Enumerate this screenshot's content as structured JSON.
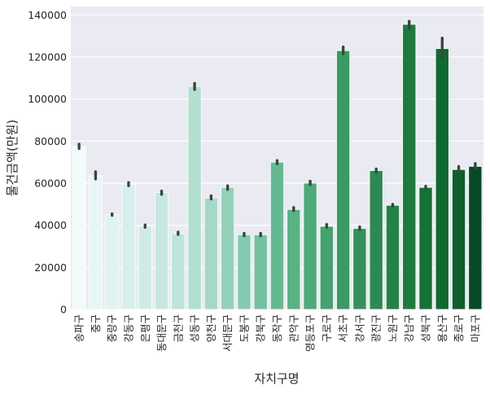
{
  "chart_data": {
    "type": "bar",
    "xlabel": "자치구명",
    "ylabel": "물건금액(만원)",
    "ylim": [
      0,
      144000
    ],
    "yticks": [
      0,
      20000,
      40000,
      60000,
      80000,
      100000,
      120000,
      140000
    ],
    "grid": true,
    "categories": [
      "송파구",
      "중구",
      "중랑구",
      "강동구",
      "은평구",
      "동대문구",
      "금천구",
      "성동구",
      "양천구",
      "서대문구",
      "도봉구",
      "강북구",
      "동작구",
      "관악구",
      "영등포구",
      "구로구",
      "서초구",
      "강서구",
      "광진구",
      "노원구",
      "강남구",
      "성북구",
      "용산구",
      "종로구",
      "마포구"
    ],
    "values": [
      77500,
      63500,
      45000,
      59500,
      39500,
      55500,
      36000,
      106000,
      53000,
      58000,
      35500,
      35500,
      70000,
      47500,
      60000,
      39500,
      123000,
      38500,
      66000,
      49500,
      135500,
      58000,
      124000,
      66500,
      68000
    ],
    "error_low": [
      76500,
      62000,
      44700,
      58800,
      39000,
      54700,
      35600,
      104500,
      52500,
      57000,
      35000,
      35000,
      69200,
      47000,
      59300,
      39000,
      121500,
      38000,
      65200,
      49000,
      133500,
      57500,
      119500,
      65000,
      67000
    ],
    "error_high": [
      78600,
      65500,
      45500,
      60300,
      40200,
      56300,
      36800,
      107500,
      54000,
      58800,
      36200,
      36200,
      70800,
      48500,
      61000,
      40400,
      124800,
      39300,
      66800,
      50000,
      137000,
      58600,
      129000,
      68000,
      69400
    ],
    "colors": [
      "#f3fafb",
      "#e8f6f7",
      "#e0f3f1",
      "#d7efec",
      "#cfebe6",
      "#c6e8e0",
      "#bce4da",
      "#b1dfd0",
      "#a3d9c6",
      "#93d1ba",
      "#84caae",
      "#74c1a0",
      "#65b992",
      "#57b284",
      "#4caa78",
      "#43a36e",
      "#3a9a63",
      "#33925a",
      "#2c8a51",
      "#258247",
      "#1d7a3f",
      "#147236",
      "#0f6a30",
      "#0b5f2b",
      "#064a26"
    ]
  }
}
